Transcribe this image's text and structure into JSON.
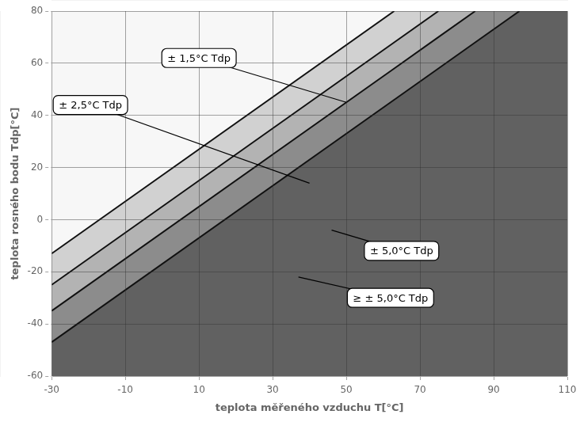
{
  "chart_data": {
    "type": "line",
    "x_label": "teplota měřeného vzduchu T[°C]",
    "y_label": "teplota rosného bodu Tdp[°C]",
    "x": [
      -30,
      63,
      75,
      85,
      97
    ],
    "series": [
      {
        "color": "#111111",
        "values": [
          -13,
          80,
          null,
          null,
          null
        ]
      },
      {
        "color": "#111111",
        "values": [
          -25,
          68,
          80,
          null,
          null
        ]
      },
      {
        "color": "#111111",
        "values": [
          -35,
          58,
          70,
          80,
          null
        ]
      },
      {
        "color": "#111111",
        "values": [
          -47,
          46,
          58,
          68,
          80
        ]
      }
    ],
    "colors": [
      "#f7f7f7",
      "#d1d1d1",
      "#b3b3b3",
      "#8c8c8c",
      "#616161"
    ],
    "xlim": [
      -30,
      110
    ],
    "ylim": [
      -60,
      80
    ],
    "xticks": [
      -30,
      -10,
      10,
      30,
      50,
      70,
      90,
      110
    ],
    "yticks": [
      -60,
      -40,
      -20,
      0,
      20,
      40,
      60,
      80
    ],
    "grid": true,
    "annotations": [
      {
        "text": "± 1,5°C Tdp",
        "x": 10,
        "y": 62,
        "arrow_x": 50,
        "arrow_y": 45
      },
      {
        "text": "± 2,5°C Tdp",
        "x": -22,
        "y": 44,
        "arrow_x": 40,
        "arrow_y": 14
      },
      {
        "text": "± 5,0°C Tdp",
        "x": 65,
        "y": -12,
        "arrow_x": 46,
        "arrow_y": -4
      },
      {
        "text": "≥ ± 5,0°C Tdp",
        "x": 62,
        "y": -30,
        "arrow_x": 37,
        "arrow_y": -22
      }
    ]
  }
}
